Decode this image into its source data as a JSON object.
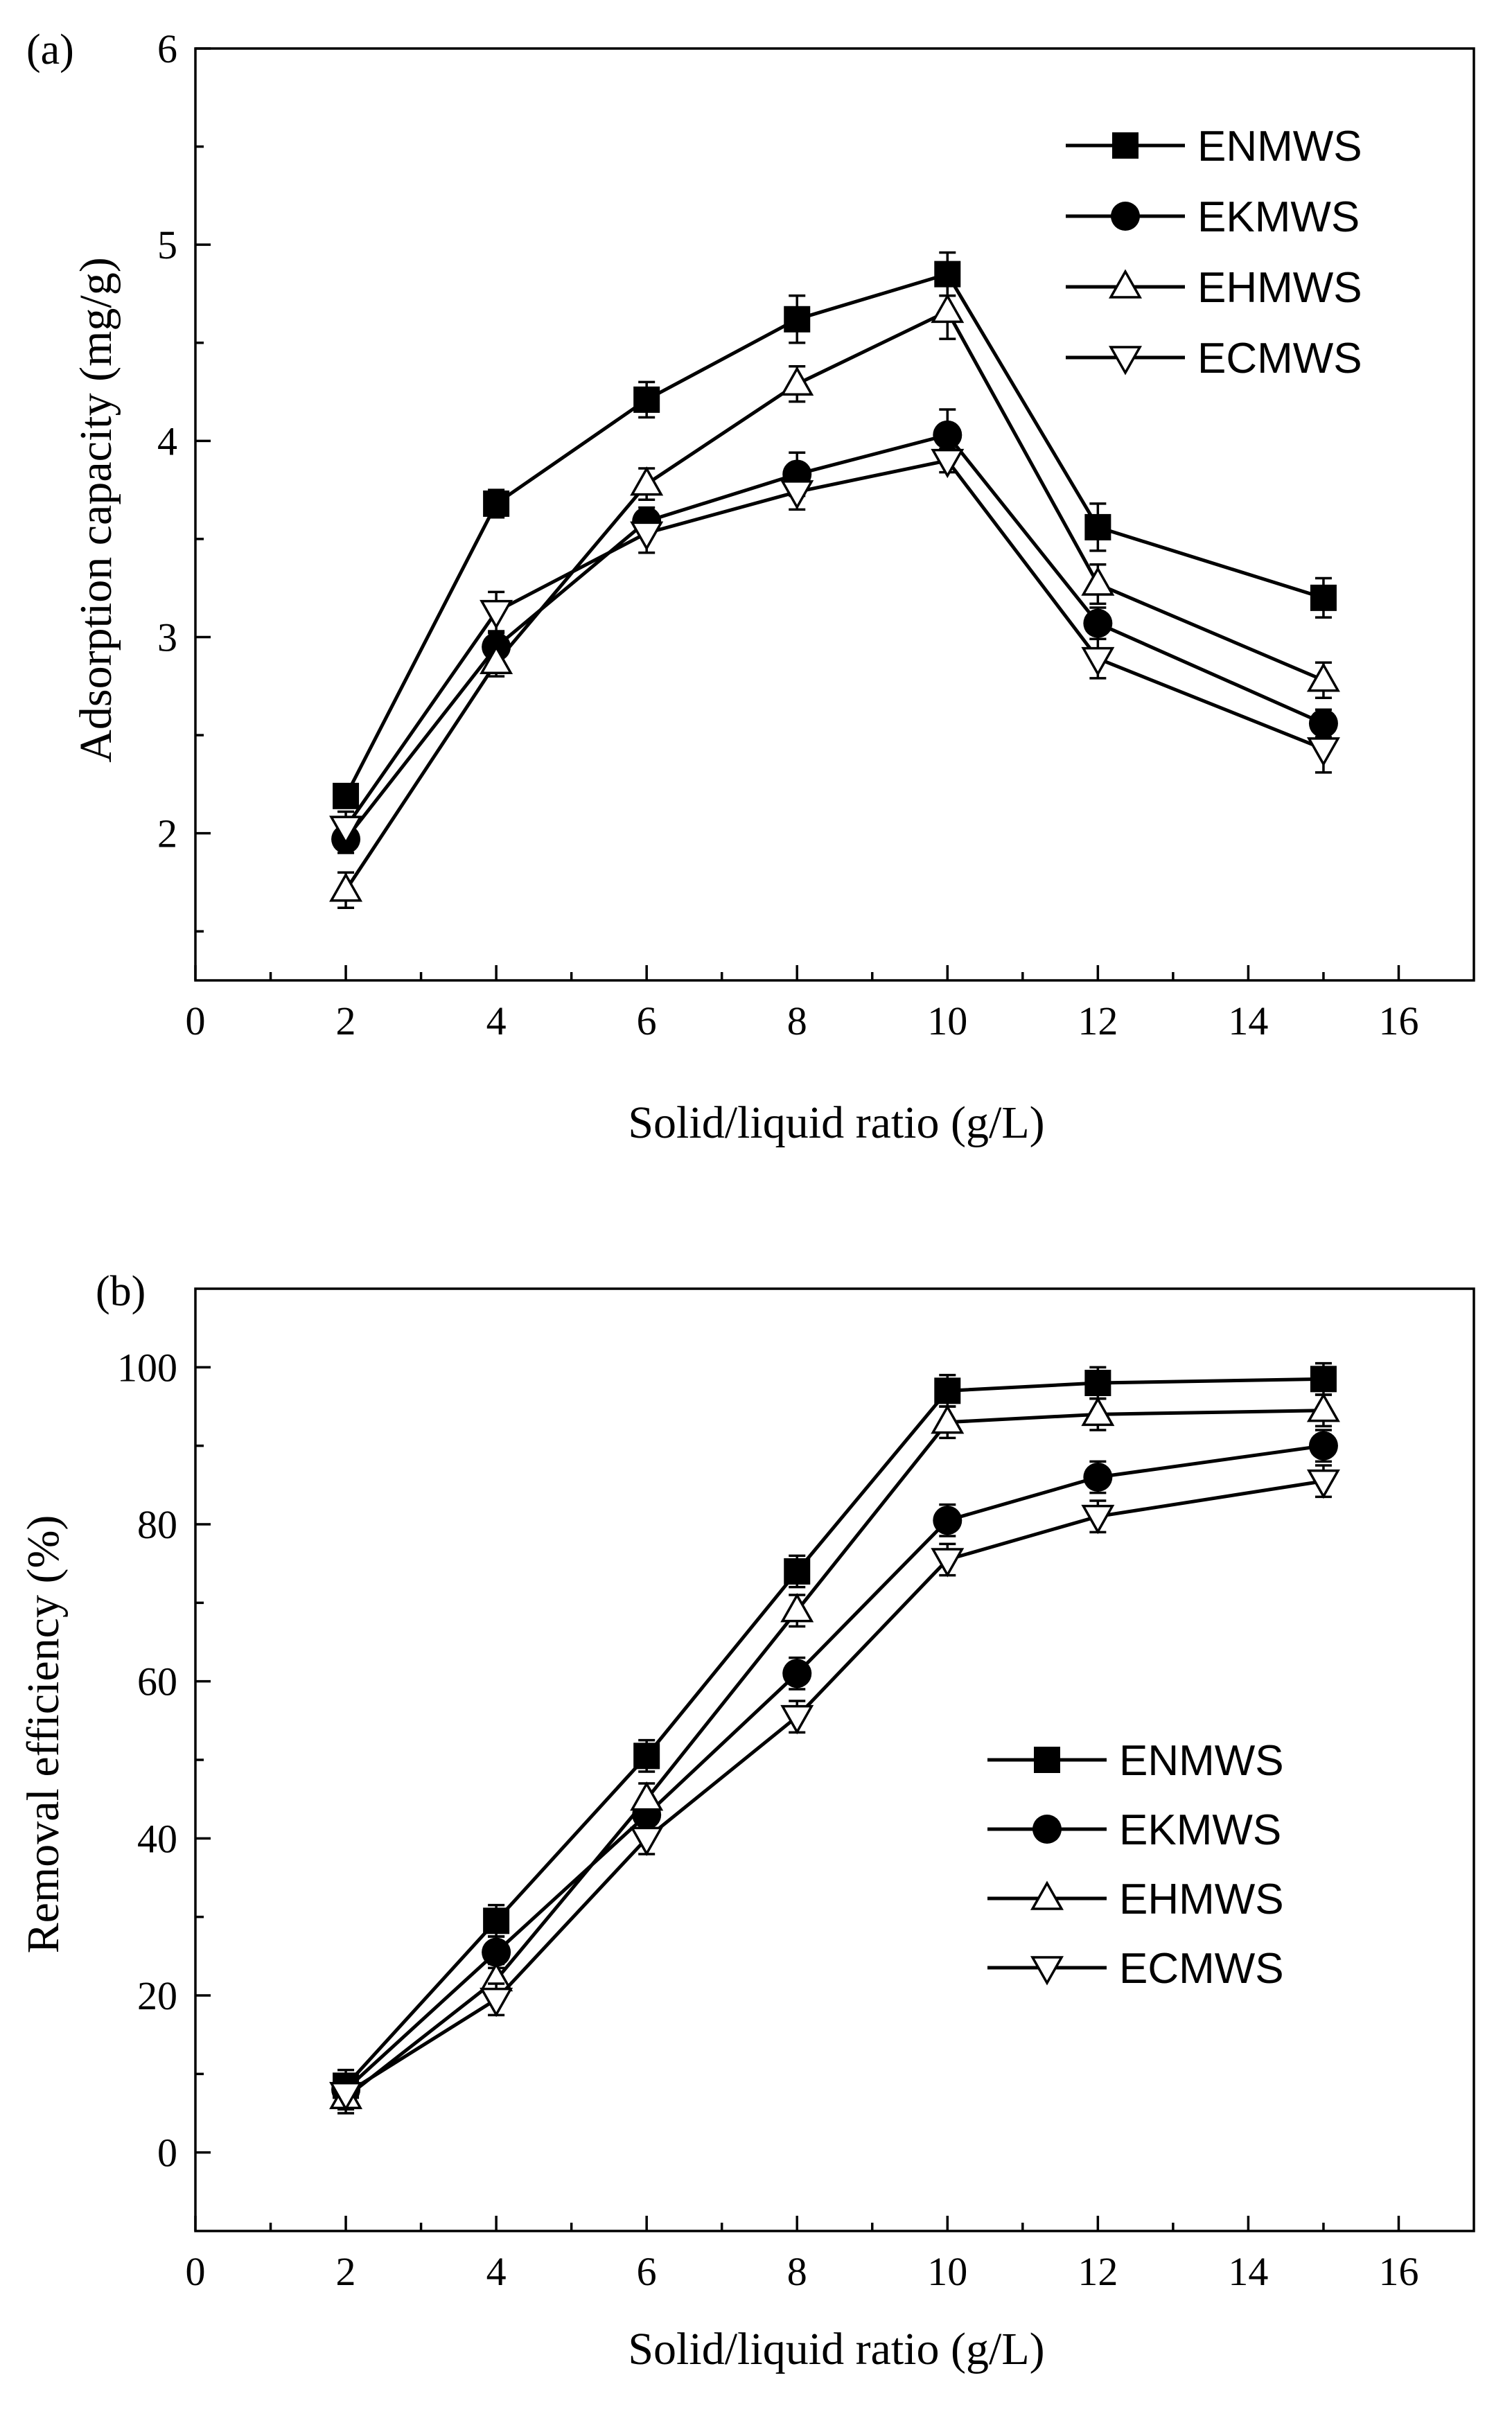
{
  "chart_data": [
    {
      "panel": "(a)",
      "type": "line",
      "xlabel": "Solid/liquid ratio (g/L)",
      "ylabel": "Adsorption capacity (mg/g)",
      "xlim": [
        0,
        17
      ],
      "ylim": [
        1.25,
        6
      ],
      "xticks": [
        0,
        2,
        4,
        6,
        8,
        10,
        12,
        14,
        16
      ],
      "yticks": [
        2,
        3,
        4,
        5,
        6
      ],
      "legend_position": "top-right",
      "x": [
        2,
        4,
        6,
        8,
        10,
        12,
        15
      ],
      "series": [
        {
          "name": "ENMWS",
          "marker": "square-filled",
          "values": [
            2.19,
            3.68,
            4.21,
            4.62,
            4.85,
            3.56,
            3.2
          ],
          "errors": [
            0.05,
            0.07,
            0.09,
            0.12,
            0.11,
            0.12,
            0.1
          ]
        },
        {
          "name": "EKMWS",
          "marker": "circle-filled",
          "values": [
            1.97,
            2.95,
            3.59,
            3.83,
            4.03,
            3.07,
            2.56
          ],
          "errors": [
            0.07,
            0.07,
            0.07,
            0.11,
            0.13,
            0.08,
            0.07
          ]
        },
        {
          "name": "EHMWS",
          "marker": "triangle-up-open",
          "values": [
            1.71,
            2.87,
            3.78,
            4.29,
            4.66,
            3.27,
            2.78
          ],
          "errors": [
            0.09,
            0.07,
            0.08,
            0.09,
            0.14,
            0.1,
            0.09
          ]
        },
        {
          "name": "ECMWS",
          "marker": "triangle-down-open",
          "values": [
            2.03,
            3.13,
            3.53,
            3.74,
            3.9,
            2.89,
            2.43
          ],
          "errors": [
            0.08,
            0.1,
            0.1,
            0.09,
            0.06,
            0.1,
            0.12
          ]
        }
      ]
    },
    {
      "panel": "(b)",
      "type": "line",
      "xlabel": "Solid/liquid ratio (g/L)",
      "ylabel": "Removal efficiency (%)",
      "xlim": [
        0,
        17
      ],
      "ylim": [
        -10,
        110
      ],
      "xticks": [
        0,
        2,
        4,
        6,
        8,
        10,
        12,
        14,
        16
      ],
      "yticks": [
        0,
        20,
        40,
        60,
        80,
        100
      ],
      "legend_position": "center-right",
      "x": [
        2,
        4,
        6,
        8,
        10,
        12,
        15
      ],
      "series": [
        {
          "name": "ENMWS",
          "marker": "square-filled",
          "values": [
            8.5,
            29.5,
            50.5,
            74,
            97,
            98,
            98.5
          ],
          "errors": [
            2,
            2,
            2,
            2,
            2,
            2,
            2
          ]
        },
        {
          "name": "EKMWS",
          "marker": "circle-filled",
          "values": [
            8,
            25.5,
            43,
            61,
            80.5,
            86,
            90
          ],
          "errors": [
            2,
            2,
            2,
            2,
            2,
            2,
            2
          ]
        },
        {
          "name": "EHMWS",
          "marker": "triangle-up-open",
          "values": [
            7,
            22,
            45,
            69,
            93,
            94,
            94.5
          ],
          "errors": [
            2,
            2,
            2,
            2,
            2,
            2,
            2
          ]
        },
        {
          "name": "ECMWS",
          "marker": "triangle-down-open",
          "values": [
            7.5,
            19.5,
            40,
            55.5,
            75.5,
            81,
            85.5
          ],
          "errors": [
            2,
            2,
            2,
            2,
            2,
            2,
            2
          ]
        }
      ]
    }
  ]
}
